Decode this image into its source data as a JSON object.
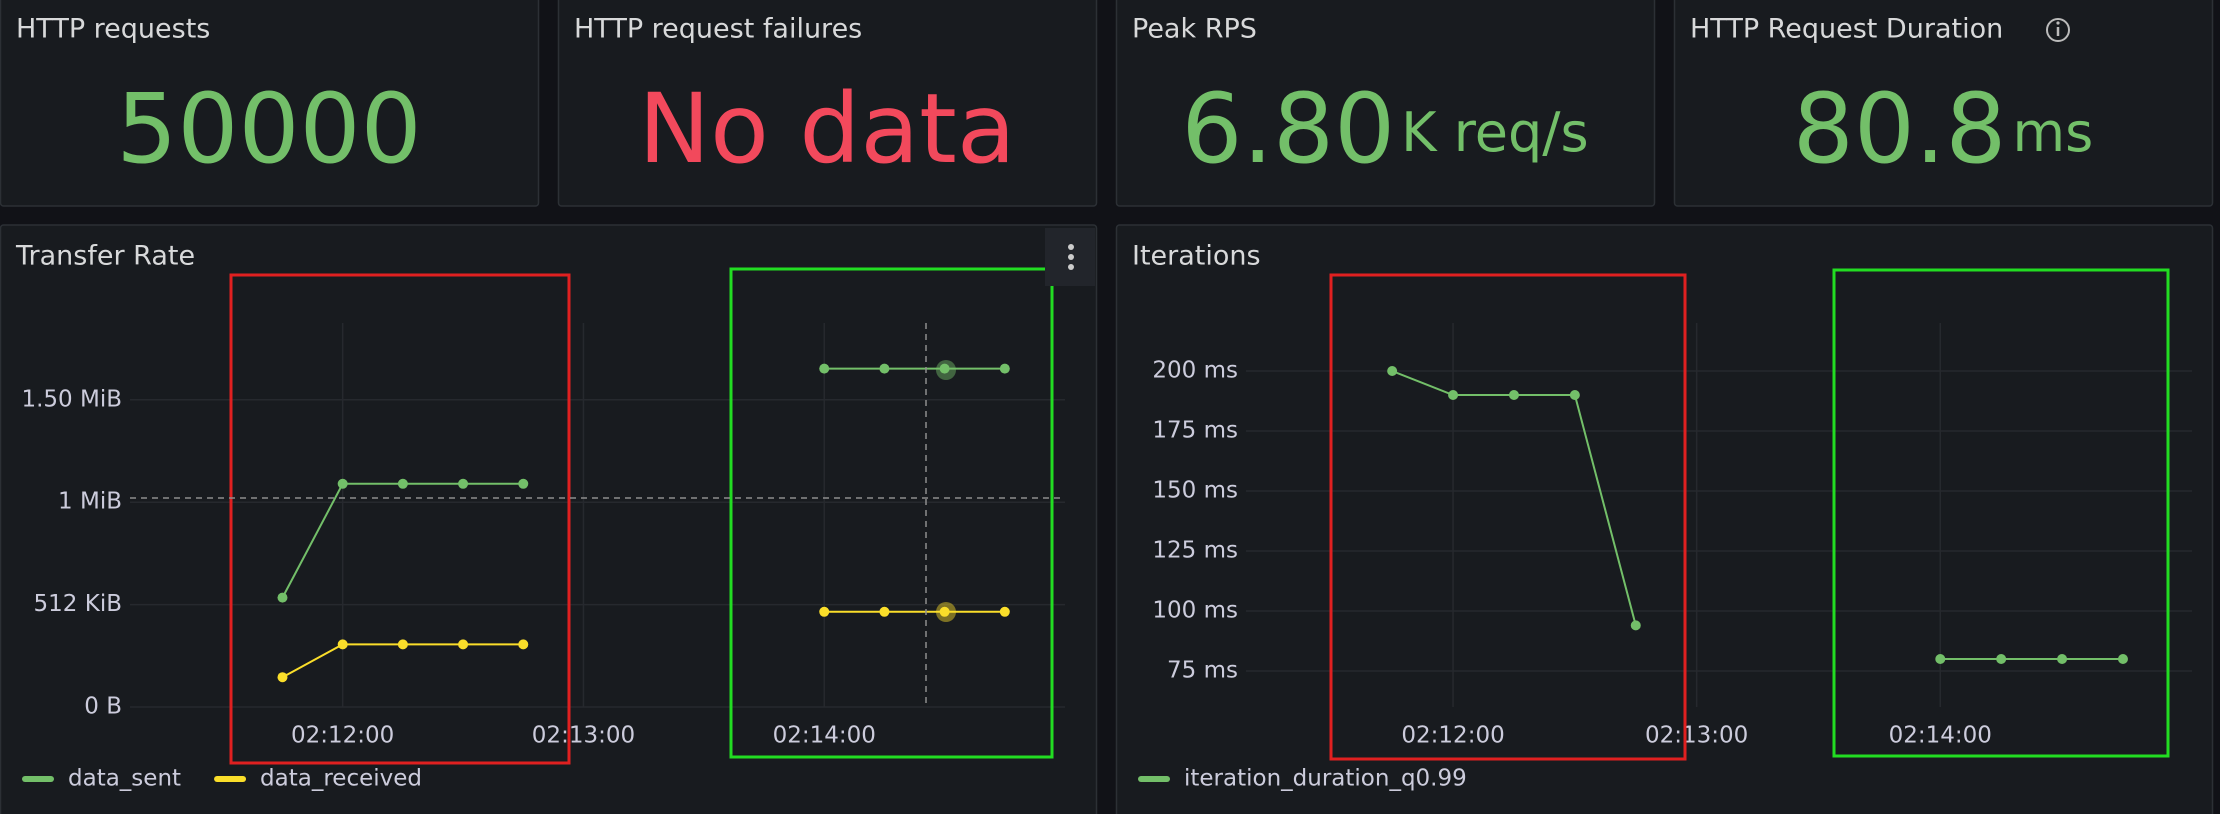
{
  "stats": [
    {
      "title": "HTTP requests",
      "value": "50000",
      "color": "#73bf69"
    },
    {
      "title": "HTTP request failures",
      "value": "No data",
      "color": "#f2495c"
    },
    {
      "title": "Peak RPS",
      "value": "6.80",
      "unit": "K req/s",
      "color": "#73bf69"
    },
    {
      "title": "HTTP Request Duration",
      "value": "80.8",
      "unit": "ms",
      "color": "#73bf69"
    }
  ],
  "chart_data": [
    {
      "type": "line",
      "title": "Transfer Rate",
      "x": [
        "02:11:45",
        "02:12:00",
        "02:12:15",
        "02:12:30",
        "02:12:45",
        "02:13:00",
        "02:13:15",
        "02:13:30",
        "02:13:45",
        "02:14:00",
        "02:14:15",
        "02:14:30",
        "02:14:45"
      ],
      "series": [
        {
          "name": "data_sent",
          "color": "#73bf69",
          "values": [
            547,
            1116,
            1116,
            1116,
            1116,
            null,
            null,
            null,
            null,
            1692,
            1692,
            1692,
            1692
          ]
        },
        {
          "name": "data_received",
          "color": "#fade2a",
          "values": [
            149,
            313,
            313,
            313,
            313,
            null,
            null,
            null,
            null,
            476,
            476,
            476,
            476
          ]
        }
      ],
      "xlim": [
        "02:11:07",
        "02:15:00"
      ],
      "xticks": [
        "02:12:00",
        "02:13:00",
        "02:14:00"
      ],
      "ylim": [
        0,
        1920
      ],
      "yticks": [
        {
          "value": 0,
          "label": "0 B"
        },
        {
          "value": 512,
          "label": "512 KiB"
        },
        {
          "value": 1024,
          "label": "1 MiB"
        },
        {
          "value": 1536,
          "label": "1.50 MiB"
        }
      ],
      "grid": true,
      "legend": "bottom-left"
    },
    {
      "type": "line",
      "title": "Iterations",
      "x": [
        "02:11:45",
        "02:12:00",
        "02:12:15",
        "02:12:30",
        "02:12:45",
        "02:13:00",
        "02:13:15",
        "02:13:30",
        "02:13:45",
        "02:14:00",
        "02:14:15",
        "02:14:30",
        "02:14:45"
      ],
      "series": [
        {
          "name": "iteration_duration_q0.99",
          "color": "#73bf69",
          "values": [
            200,
            190,
            190,
            190,
            94,
            null,
            null,
            null,
            null,
            80,
            80,
            80,
            80
          ]
        }
      ],
      "xlim": [
        "02:11:09",
        "02:15:02"
      ],
      "xticks": [
        "02:12:00",
        "02:13:00",
        "02:14:00"
      ],
      "ylim": [
        60,
        220
      ],
      "yticks": [
        {
          "value": 75,
          "label": "75 ms"
        },
        {
          "value": 100,
          "label": "100 ms"
        },
        {
          "value": 125,
          "label": "125 ms"
        },
        {
          "value": 150,
          "label": "150 ms"
        },
        {
          "value": 175,
          "label": "175 ms"
        },
        {
          "value": 200,
          "label": "200 ms"
        }
      ],
      "grid": true,
      "legend": "bottom-left"
    }
  ]
}
